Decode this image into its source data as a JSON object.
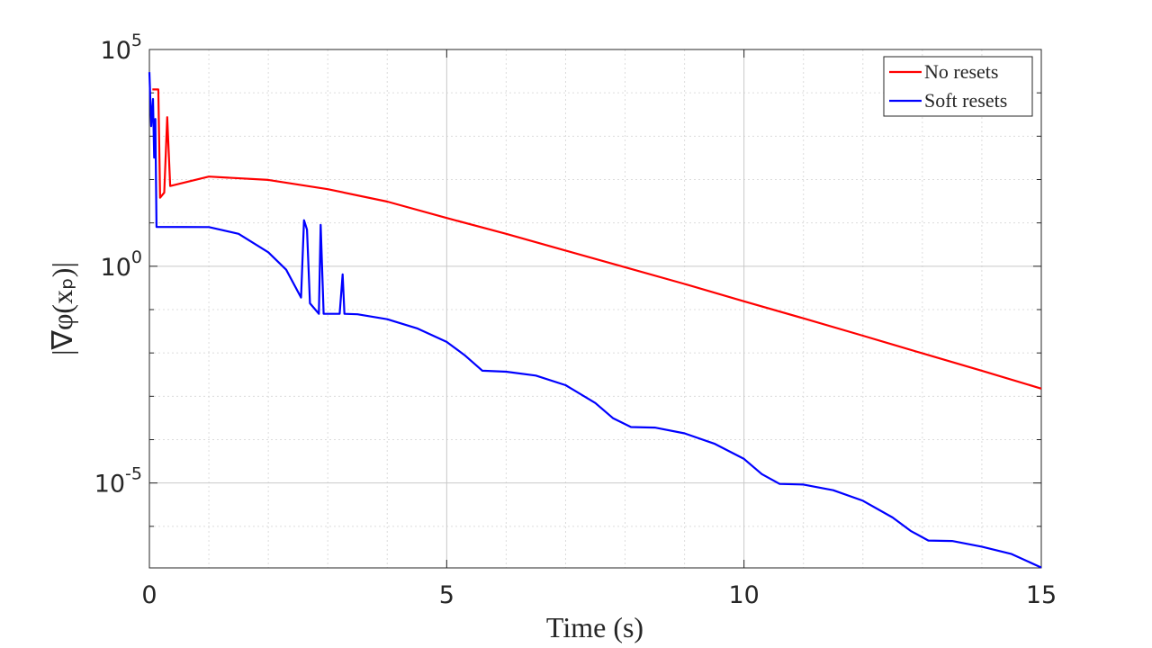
{
  "chart_data": {
    "type": "line",
    "xlabel": "Time (s)",
    "ylabel": "|∇φ(xₚ)|",
    "yscale": "log",
    "xlim": [
      0,
      15
    ],
    "ylim": [
      1.1e-07,
      100000
    ],
    "xticks": [
      0,
      5,
      10,
      15
    ],
    "yticks": [
      {
        "value": 100000,
        "label": "10",
        "exponent": "5"
      },
      {
        "value": 1,
        "label": "10",
        "exponent": "0"
      },
      {
        "value": 1e-05,
        "label": "10",
        "exponent": "-5"
      }
    ],
    "xminorticks": [
      1,
      2,
      3,
      4,
      6,
      7,
      8,
      9,
      11,
      12,
      13,
      14
    ],
    "yminorticks": [
      10000,
      1000,
      100,
      10,
      0.1,
      0.01,
      0.001,
      0.0001,
      1e-06
    ],
    "grid": true,
    "minor_grid": true,
    "legend": "northeast",
    "series": [
      {
        "name": "No resets",
        "color": "#ff0000",
        "x": [
          0.05,
          0.15,
          0.18,
          0.25,
          0.3,
          0.35,
          1,
          2,
          3,
          4,
          5,
          6,
          7,
          8,
          9,
          10,
          11,
          12,
          13,
          14,
          15
        ],
        "values": [
          12000,
          12000,
          38,
          50,
          2750,
          71,
          117,
          98,
          60,
          31,
          13,
          5.6,
          2.3,
          0.95,
          0.39,
          0.155,
          0.063,
          0.025,
          0.0098,
          0.0039,
          0.0015
        ]
      },
      {
        "name": "Soft resets",
        "color": "#0000ff",
        "x": [
          0,
          0.03,
          0.06,
          0.08,
          0.1,
          0.12,
          1,
          1.5,
          2,
          2.3,
          2.55,
          2.6,
          2.65,
          2.7,
          2.85,
          2.88,
          2.93,
          3.2,
          3.25,
          3.28,
          3.5,
          4,
          4.5,
          5,
          5.3,
          5.6,
          6,
          6.5,
          7,
          7.5,
          7.8,
          8.1,
          8.5,
          9,
          9.5,
          10,
          10.3,
          10.6,
          11,
          11.5,
          12,
          12.5,
          12.8,
          13.1,
          13.5,
          14,
          14.5,
          15
        ],
        "values": [
          30000,
          1700,
          7200,
          320,
          2500,
          8.1,
          8.0,
          5.6,
          2.1,
          0.83,
          0.19,
          11.5,
          7,
          0.14,
          0.08,
          9,
          0.08,
          0.08,
          0.65,
          0.08,
          0.078,
          0.06,
          0.037,
          0.018,
          0.0089,
          0.0039,
          0.0037,
          0.003,
          0.0018,
          0.0007,
          0.00031,
          0.000195,
          0.00019,
          0.00014,
          8.1e-05,
          3.6e-05,
          1.6e-05,
          9.5e-06,
          9.2e-06,
          6.8e-06,
          3.9e-06,
          1.6e-06,
          7.9e-07,
          4.7e-07,
          4.6e-07,
          3.4e-07,
          2.3e-07,
          1.12e-07
        ]
      }
    ]
  }
}
